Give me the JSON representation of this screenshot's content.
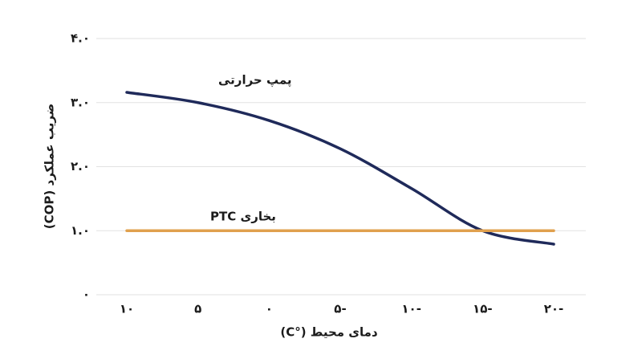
{
  "chart_data": {
    "type": "line",
    "x_label": "دمای محیط (°C)",
    "y_label": "ضریب عملکرد (COP)",
    "categories": [
      "۱۰",
      "۵",
      "۰",
      "۵-",
      "۱۰-",
      "۱۵-",
      "۲۰-"
    ],
    "series": [
      {
        "name": "پمپ حرارتی",
        "color": "#1f2a5a",
        "values": [
          3.16,
          3.0,
          2.72,
          2.28,
          1.66,
          1.0,
          0.79
        ]
      },
      {
        "name": "بخاری PTC",
        "color": "#e0a04e",
        "values": [
          1.0,
          1.0,
          1.0,
          1.0,
          1.0,
          1.0,
          1.0
        ]
      }
    ],
    "ylim": [
      0,
      4
    ],
    "yticks": [
      {
        "value": 0,
        "label": "۰"
      },
      {
        "value": 1,
        "label": "۱.۰"
      },
      {
        "value": 2,
        "label": "۲.۰"
      },
      {
        "value": 3,
        "label": "۳.۰"
      },
      {
        "value": 4,
        "label": "۴.۰"
      }
    ],
    "grid": true
  }
}
